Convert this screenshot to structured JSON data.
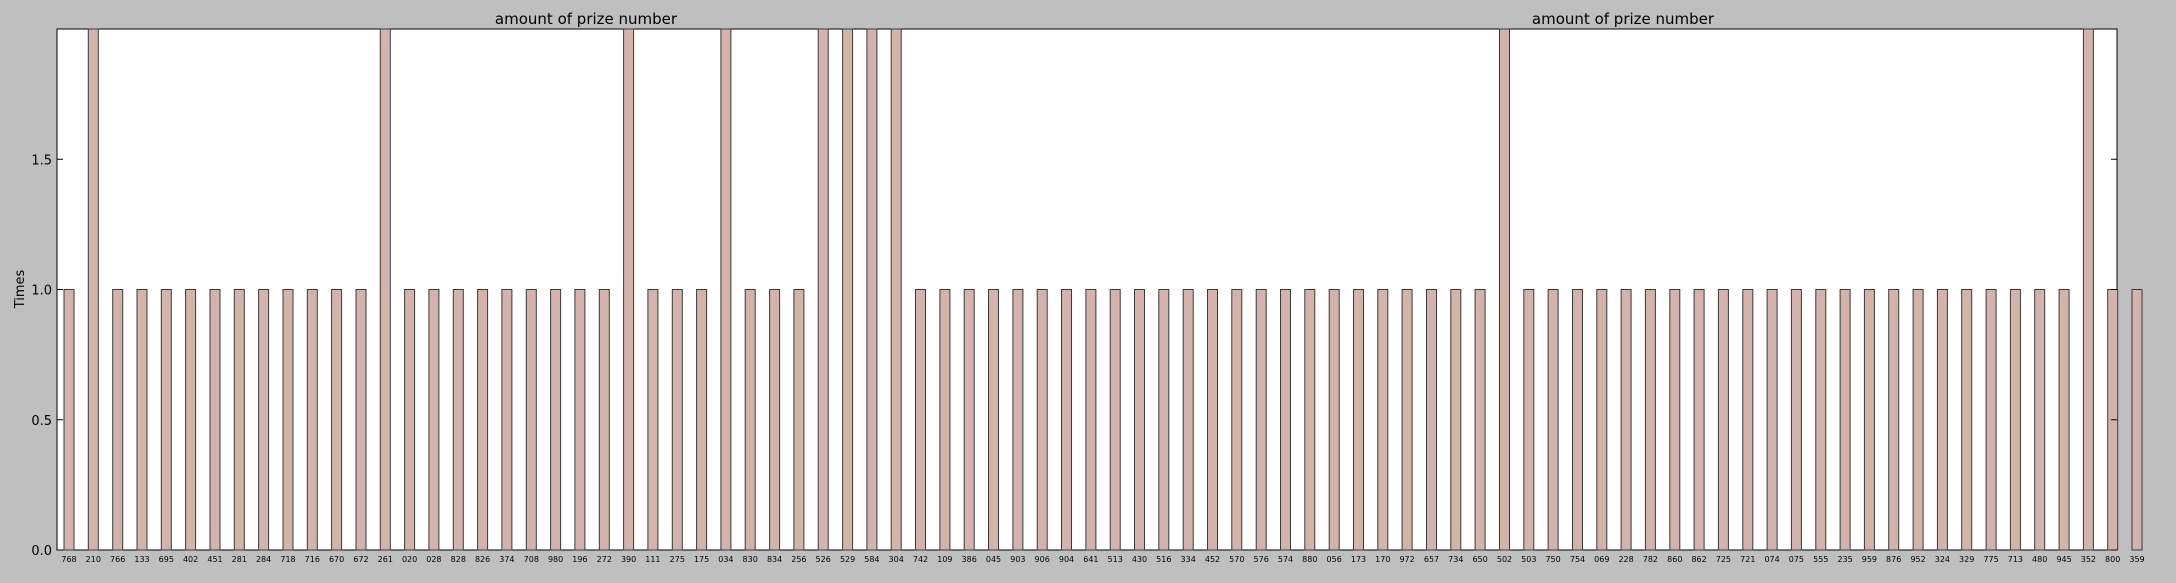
{
  "chart_data": [
    {
      "type": "bar",
      "title": "amount of prize number",
      "ylabel": "Times",
      "xlabel": "",
      "ylim": [
        0,
        2
      ],
      "yticks": [
        0.0,
        0.5,
        1.0,
        1.5
      ],
      "grid": false,
      "categories": [
        "768",
        "210",
        "766",
        "133",
        "695",
        "402",
        "451",
        "281",
        "284",
        "718",
        "716",
        "670",
        "672",
        "261",
        "020",
        "028",
        "828",
        "826",
        "374",
        "708",
        "980",
        "196",
        "272",
        "390",
        "111",
        "275",
        "175",
        "034",
        "830",
        "834",
        "256",
        "526",
        "529",
        "584",
        "304",
        "742",
        "109",
        "386",
        "045",
        "903",
        "906",
        "904",
        "641",
        "513"
      ],
      "values": [
        1,
        2,
        1,
        1,
        1,
        1,
        1,
        1,
        1,
        1,
        1,
        1,
        1,
        2,
        1,
        1,
        1,
        1,
        1,
        1,
        1,
        1,
        1,
        2,
        1,
        1,
        1,
        2,
        1,
        1,
        1,
        2,
        2,
        2,
        2,
        1,
        1,
        1,
        1,
        1,
        1,
        1,
        1,
        1
      ]
    },
    {
      "type": "bar",
      "title": "amount of prize number",
      "ylabel": "",
      "xlabel": "",
      "ylim": [
        0,
        2
      ],
      "grid": false,
      "categories": [
        "430",
        "516",
        "334",
        "452",
        "570",
        "576",
        "574",
        "880",
        "056",
        "173",
        "170",
        "972",
        "657",
        "734",
        "650",
        "502",
        "503",
        "750",
        "754",
        "069",
        "228",
        "782",
        "860",
        "862",
        "725",
        "721",
        "074",
        "075",
        "555",
        "235",
        "959",
        "876",
        "952",
        "324",
        "329",
        "775",
        "713",
        "480",
        "945",
        "352",
        "800",
        "359"
      ],
      "values": [
        1,
        1,
        1,
        1,
        1,
        1,
        1,
        1,
        1,
        1,
        1,
        1,
        1,
        1,
        1,
        2,
        1,
        1,
        1,
        1,
        1,
        1,
        1,
        1,
        1,
        1,
        1,
        1,
        1,
        1,
        1,
        1,
        1,
        1,
        1,
        1,
        1,
        1,
        1,
        2,
        1,
        1
      ]
    }
  ],
  "style": {
    "bar_fill": "#d4b4aa",
    "bar_stroke": "#3a3a3a",
    "axes_bg": "#ffffff",
    "figure_bg": "#bfbfbf"
  }
}
